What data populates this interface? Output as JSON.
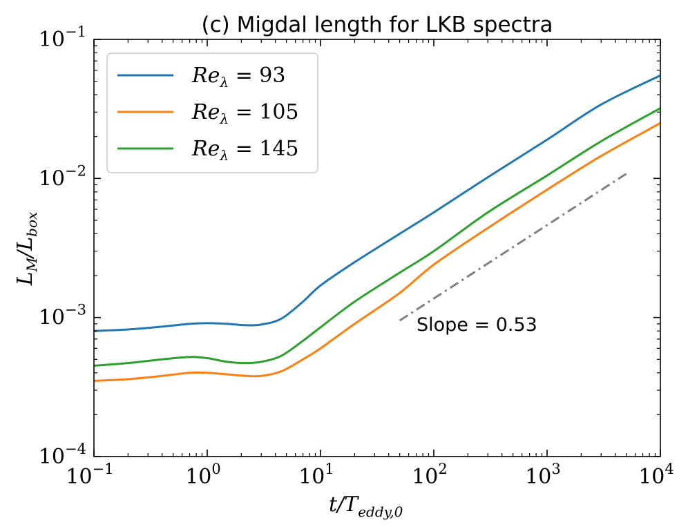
{
  "chart_data": {
    "type": "line",
    "title": "(c) Migdal length for LKB spectra",
    "xlabel": "t/T_{eddy,0}",
    "ylabel": "L_M/L_box",
    "xscale": "log",
    "yscale": "log",
    "xlim": [
      0.1,
      10000
    ],
    "ylim": [
      0.0001,
      0.1
    ],
    "grid": false,
    "legend_position": "top-left",
    "x_ticks": [
      {
        "value": 0.1,
        "base": "10",
        "exp": "−1"
      },
      {
        "value": 1,
        "base": "10",
        "exp": "0"
      },
      {
        "value": 10,
        "base": "10",
        "exp": "1"
      },
      {
        "value": 100,
        "base": "10",
        "exp": "2"
      },
      {
        "value": 1000,
        "base": "10",
        "exp": "3"
      },
      {
        "value": 10000,
        "base": "10",
        "exp": "4"
      }
    ],
    "y_ticks": [
      {
        "value": 0.0001,
        "base": "10",
        "exp": "−4"
      },
      {
        "value": 0.001,
        "base": "10",
        "exp": "−3"
      },
      {
        "value": 0.01,
        "base": "10",
        "exp": "−2"
      },
      {
        "value": 0.1,
        "base": "10",
        "exp": "−1"
      }
    ],
    "series": [
      {
        "name": "Re_λ = 93",
        "legend_value": "93",
        "color": "#1f77b4",
        "x": [
          0.1,
          0.2,
          0.4,
          0.7,
          1.0,
          1.5,
          2.2,
          3.0,
          4.5,
          7,
          10,
          20,
          50,
          100,
          300,
          1000,
          3000,
          10000
        ],
        "y": [
          0.0008,
          0.00082,
          0.00086,
          0.0009,
          0.00091,
          0.0009,
          0.00088,
          0.00089,
          0.00098,
          0.0013,
          0.0017,
          0.0025,
          0.004,
          0.0057,
          0.0102,
          0.019,
          0.034,
          0.055
        ]
      },
      {
        "name": "Re_λ = 105",
        "legend_value": "105",
        "color": "#ff7f0e",
        "x": [
          0.1,
          0.2,
          0.4,
          0.7,
          1.0,
          1.5,
          2.2,
          3.0,
          4.5,
          7,
          10,
          20,
          50,
          100,
          300,
          1000,
          3000,
          10000
        ],
        "y": [
          0.00035,
          0.00036,
          0.00038,
          0.0004,
          0.0004,
          0.00039,
          0.00038,
          0.00038,
          0.00041,
          0.0005,
          0.0006,
          0.0009,
          0.0015,
          0.0024,
          0.0044,
          0.0083,
          0.0145,
          0.025
        ]
      },
      {
        "name": "Re_λ = 145",
        "legend_value": "145",
        "color": "#2ca02c",
        "x": [
          0.1,
          0.2,
          0.4,
          0.7,
          1.0,
          1.5,
          2.2,
          3.0,
          4.5,
          7,
          10,
          20,
          50,
          100,
          300,
          1000,
          3000,
          10000
        ],
        "y": [
          0.00045,
          0.00047,
          0.0005,
          0.00052,
          0.00051,
          0.00048,
          0.00047,
          0.00048,
          0.00053,
          0.00068,
          0.00085,
          0.0013,
          0.0021,
          0.003,
          0.0057,
          0.0105,
          0.0185,
          0.032
        ]
      }
    ],
    "reference_line": {
      "label": "Slope = 0.53",
      "slope": 0.53,
      "color": "#808080",
      "x": [
        50,
        5000
      ],
      "y": [
        0.00095,
        0.0108
      ]
    }
  }
}
